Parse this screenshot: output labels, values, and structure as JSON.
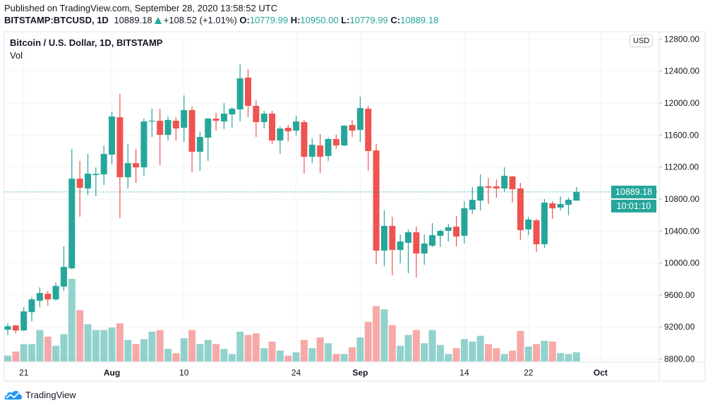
{
  "header": {
    "published": "Published on TradingView.com, September 28, 2020 13:58:52 UTC",
    "symbol": "BITSTAMP:BTCUSD, 1D",
    "last": "10889.18",
    "change": "+108.52 (+1.01%)",
    "o_label": "O:",
    "o": "10779.99",
    "h_label": "H:",
    "h": "10950.00",
    "l_label": "L:",
    "l": "10779.99",
    "c_label": "C:",
    "c": "10889.18",
    "direction_icon": "triangle-up-icon"
  },
  "legend": {
    "title": "Bitcoin / U.S. Dollar, 1D, BITSTAMP",
    "volume_label": "Vol"
  },
  "currency_button": "USD",
  "price_label": "10889.18",
  "countdown_label": "10:01:10",
  "brand": "TradingView",
  "colors": {
    "up": "#26a69a",
    "down": "#ef5350",
    "grid": "#f0f3fa",
    "text": "#131722"
  },
  "chart_data": {
    "type": "candlestick",
    "title": "Bitcoin / U.S. Dollar, 1D, BITSTAMP",
    "ylim": [
      8750,
      12850
    ],
    "grid": true,
    "y_ticks": [
      "12800.00",
      "12400.00",
      "12000.00",
      "11600.00",
      "11200.00",
      "10800.00",
      "10400.00",
      "10000.00",
      "9600.00",
      "9200.00",
      "8800.00"
    ],
    "x_ticks": [
      {
        "label": "21",
        "date": "2020-07-21",
        "bold": false
      },
      {
        "label": "Aug",
        "date": "2020-08-01",
        "bold": true
      },
      {
        "label": "10",
        "date": "2020-08-10",
        "bold": false
      },
      {
        "label": "24",
        "date": "2020-08-24",
        "bold": false
      },
      {
        "label": "Sep",
        "date": "2020-09-01",
        "bold": true
      },
      {
        "label": "14",
        "date": "2020-09-14",
        "bold": false
      },
      {
        "label": "22",
        "date": "2020-09-22",
        "bold": false
      },
      {
        "label": "Oct",
        "date": "2020-10-01",
        "bold": true
      }
    ],
    "columns": [
      "date",
      "open",
      "high",
      "low",
      "close",
      "volume_relative_pct"
    ],
    "candles": [
      [
        "2020-07-19",
        9166,
        9245,
        9095,
        9210,
        7
      ],
      [
        "2020-07-20",
        9219,
        9227,
        9121,
        9157,
        12
      ],
      [
        "2020-07-21",
        9157,
        9448,
        9148,
        9395,
        21
      ],
      [
        "2020-07-22",
        9386,
        9572,
        9271,
        9545,
        21
      ],
      [
        "2020-07-23",
        9528,
        9695,
        9448,
        9625,
        38
      ],
      [
        "2020-07-24",
        9616,
        9651,
        9466,
        9545,
        30
      ],
      [
        "2020-07-25",
        9545,
        9757,
        9528,
        9713,
        19
      ],
      [
        "2020-07-26",
        9704,
        10208,
        9651,
        9951,
        33
      ],
      [
        "2020-07-27",
        9934,
        11426,
        9920,
        11055,
        100
      ],
      [
        "2020-07-28",
        11055,
        11276,
        10578,
        10940,
        62
      ],
      [
        "2020-07-29",
        10932,
        11364,
        10852,
        11117,
        45
      ],
      [
        "2020-07-30",
        11100,
        11196,
        10834,
        11115,
        38
      ],
      [
        "2020-07-31",
        11108,
        11470,
        10976,
        11364,
        38
      ],
      [
        "2020-08-01",
        11355,
        11894,
        11232,
        11832,
        41
      ],
      [
        "2020-08-02",
        11823,
        12115,
        10561,
        11073,
        46
      ],
      [
        "2020-08-03",
        11073,
        11488,
        10932,
        11249,
        26
      ],
      [
        "2020-08-04",
        11249,
        11426,
        11002,
        11196,
        21
      ],
      [
        "2020-08-05",
        11196,
        11806,
        11090,
        11770,
        27
      ],
      [
        "2020-08-06",
        11770,
        11929,
        11576,
        11779,
        36
      ],
      [
        "2020-08-07",
        11779,
        11929,
        11223,
        11603,
        38
      ],
      [
        "2020-08-08",
        11603,
        11832,
        11532,
        11788,
        15
      ],
      [
        "2020-08-09",
        11779,
        11823,
        11532,
        11682,
        10
      ],
      [
        "2020-08-10",
        11691,
        12097,
        11514,
        11912,
        28
      ],
      [
        "2020-08-11",
        11912,
        11956,
        11135,
        11391,
        38
      ],
      [
        "2020-08-12",
        11391,
        11638,
        11152,
        11576,
        21
      ],
      [
        "2020-08-13",
        11567,
        11815,
        11276,
        11806,
        26
      ],
      [
        "2020-08-14",
        11806,
        11876,
        11656,
        11779,
        21
      ],
      [
        "2020-08-15",
        11770,
        12000,
        11673,
        11868,
        15
      ],
      [
        "2020-08-16",
        11859,
        11947,
        11691,
        11929,
        9
      ],
      [
        "2020-08-17",
        11920,
        12486,
        11770,
        12309,
        36
      ],
      [
        "2020-08-18",
        12318,
        12424,
        11823,
        11965,
        32
      ],
      [
        "2020-08-19",
        11965,
        12035,
        11576,
        11762,
        34
      ],
      [
        "2020-08-20",
        11762,
        11903,
        11682,
        11868,
        16
      ],
      [
        "2020-08-21",
        11868,
        11903,
        11488,
        11532,
        24
      ],
      [
        "2020-08-22",
        11532,
        11709,
        11364,
        11682,
        13
      ],
      [
        "2020-08-23",
        11691,
        11726,
        11523,
        11647,
        7
      ],
      [
        "2020-08-24",
        11656,
        11841,
        11594,
        11770,
        11
      ],
      [
        "2020-08-25",
        11762,
        11788,
        11117,
        11329,
        26
      ],
      [
        "2020-08-26",
        11329,
        11558,
        11249,
        11479,
        16
      ],
      [
        "2020-08-27",
        11470,
        11611,
        11126,
        11329,
        29
      ],
      [
        "2020-08-28",
        11338,
        11567,
        11276,
        11550,
        22
      ],
      [
        "2020-08-29",
        11550,
        11603,
        11426,
        11470,
        9
      ],
      [
        "2020-08-30",
        11470,
        11726,
        11461,
        11717,
        9
      ],
      [
        "2020-08-31",
        11726,
        11788,
        11576,
        11656,
        17
      ],
      [
        "2020-09-01",
        11664,
        12079,
        11514,
        11938,
        29
      ],
      [
        "2020-09-02",
        11929,
        11965,
        11152,
        11400,
        48
      ],
      [
        "2020-09-03",
        11408,
        11488,
        9987,
        10155,
        67
      ],
      [
        "2020-09-04",
        10155,
        10658,
        9960,
        10464,
        63
      ],
      [
        "2020-09-05",
        10464,
        10578,
        9846,
        10163,
        44
      ],
      [
        "2020-09-06",
        10163,
        10358,
        9996,
        10269,
        19
      ],
      [
        "2020-09-07",
        10252,
        10419,
        9872,
        10384,
        32
      ],
      [
        "2020-09-08",
        10384,
        10455,
        9819,
        10119,
        38
      ],
      [
        "2020-09-09",
        10119,
        10358,
        9978,
        10243,
        22
      ],
      [
        "2020-09-10",
        10216,
        10499,
        10200,
        10349,
        38
      ],
      [
        "2020-09-11",
        10340,
        10419,
        10199,
        10402,
        20
      ],
      [
        "2020-09-12",
        10402,
        10490,
        10269,
        10446,
        9
      ],
      [
        "2020-09-13",
        10455,
        10587,
        10207,
        10331,
        16
      ],
      [
        "2020-09-14",
        10340,
        10773,
        10243,
        10684,
        27
      ],
      [
        "2020-09-15",
        10667,
        10949,
        10614,
        10790,
        24
      ],
      [
        "2020-09-16",
        10781,
        11108,
        10658,
        10958,
        31
      ],
      [
        "2020-09-17",
        10958,
        11064,
        10737,
        10940,
        21
      ],
      [
        "2020-09-18",
        10958,
        11046,
        10817,
        10932,
        16
      ],
      [
        "2020-09-19",
        10932,
        11196,
        10887,
        11091,
        9
      ],
      [
        "2020-09-20",
        11082,
        11091,
        10755,
        10923,
        13
      ],
      [
        "2020-09-21",
        10932,
        11002,
        10287,
        10411,
        37
      ],
      [
        "2020-09-22",
        10420,
        10578,
        10349,
        10543,
        18
      ],
      [
        "2020-09-23",
        10534,
        10552,
        10137,
        10234,
        21
      ],
      [
        "2020-09-24",
        10234,
        10799,
        10190,
        10755,
        25
      ],
      [
        "2020-09-25",
        10746,
        10773,
        10552,
        10684,
        24
      ],
      [
        "2020-09-26",
        10693,
        10834,
        10658,
        10737,
        10
      ],
      [
        "2020-09-27",
        10728,
        10817,
        10596,
        10790,
        9
      ],
      [
        "2020-09-28",
        10779.99,
        10950.0,
        10779.99,
        10889.18,
        11
      ]
    ],
    "last_price": 10889.18
  }
}
